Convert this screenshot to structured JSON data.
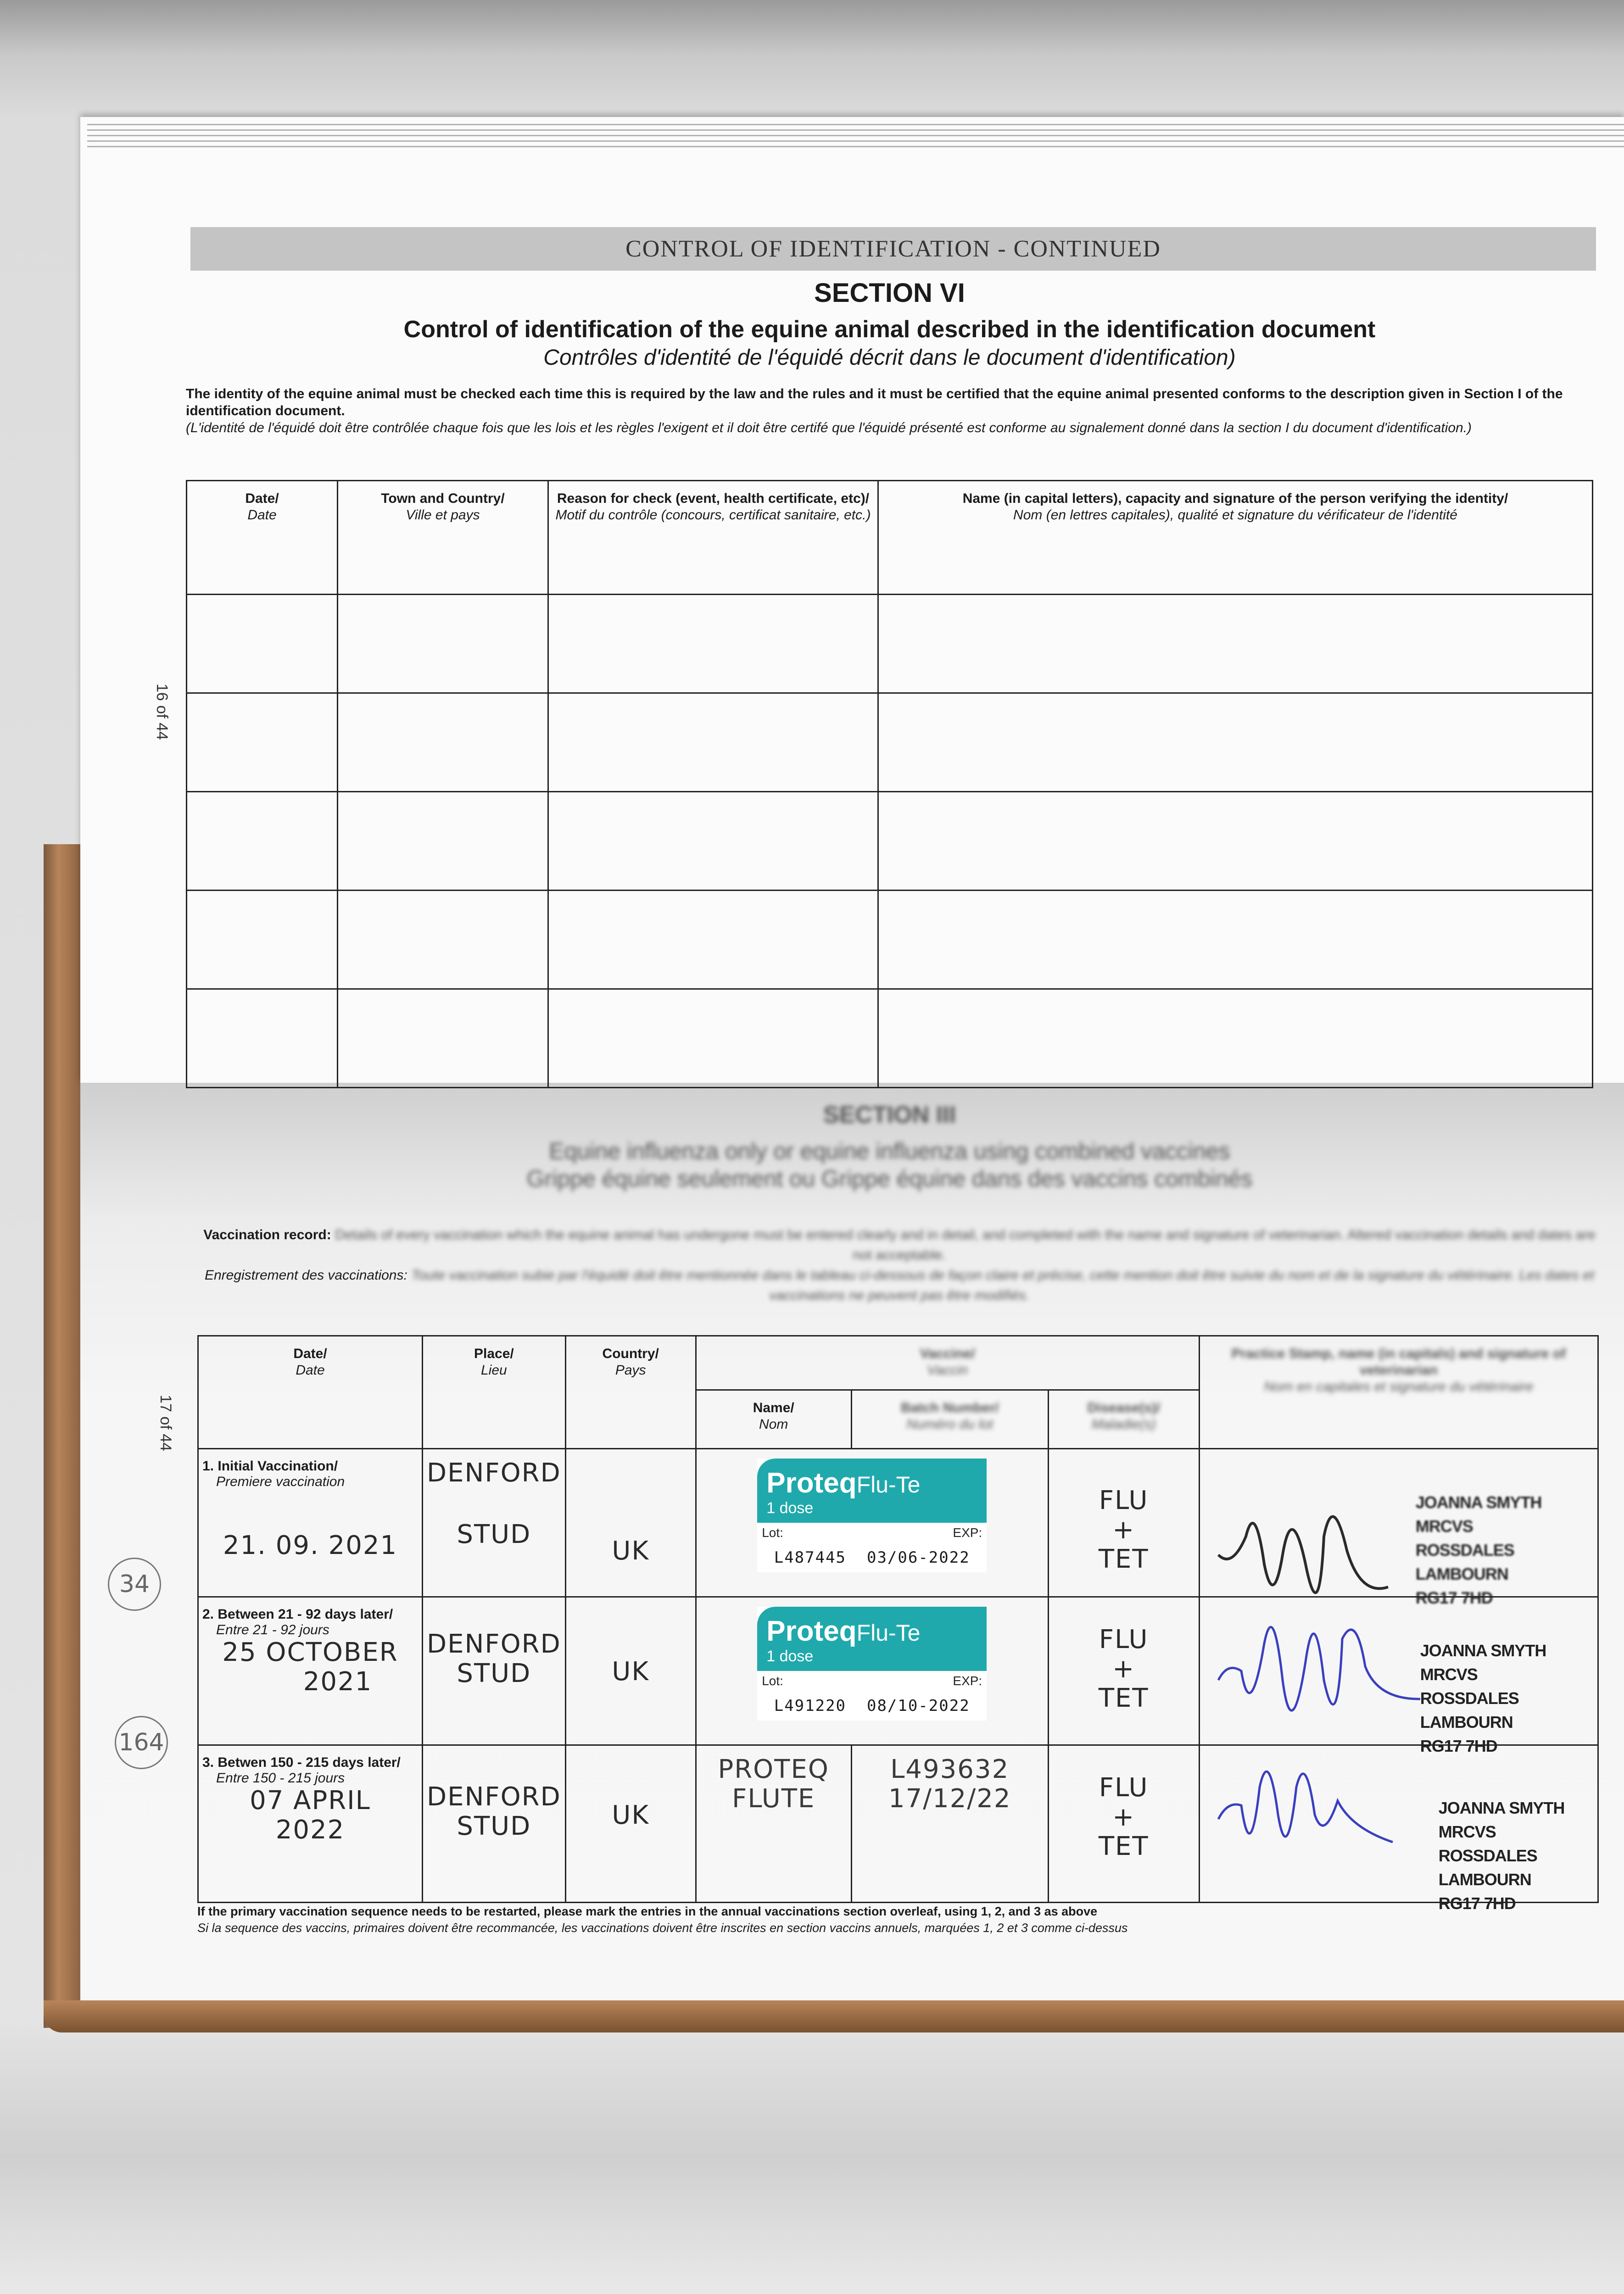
{
  "top_page": {
    "band_title": "CONTROL OF IDENTIFICATION - CONTINUED",
    "section": "SECTION VI",
    "title": "Control of identification of the equine animal described in the identification document",
    "subtitle": "Contrôles d'identité de l'équidé décrit dans le document d'identification)",
    "intro_en": "The identity of the equine animal must be checked each time this is required by the law and the rules and it must be certified that the equine animal presented conforms to the description given in Section I of the identification document.",
    "intro_fr": "(L'identité de l'équidé doit être contrôlée chaque fois que les lois et les règles l'exigent et il doit être certifé que l'équidé présenté est conforme au signalement donné dans la section I du document d'identification.)",
    "page_number": "16 of 44",
    "table": {
      "headers": [
        {
          "en": "Date/",
          "fr": "Date"
        },
        {
          "en": "Town and Country/",
          "fr": "Ville et pays"
        },
        {
          "en": "Reason for check (event, health certificate, etc)/",
          "fr": "Motif du contrôle (concours, certificat sanitaire, etc.)"
        },
        {
          "en": "Name (in capital letters), capacity and signature of the person verifying the identity/",
          "fr": "Nom (en lettres capitales), qualité et signature du vérificateur de l'identité"
        }
      ],
      "empty_rows": 5
    }
  },
  "bottom_page": {
    "section": "SECTION III",
    "subtitle_en": "Equine influenza only or equine influenza using combined vaccines",
    "subtitle_fr": "Grippe équine seulement ou Grippe équine dans des vaccins combinés",
    "record_en_label": "Vaccination record:",
    "record_en": "Details of every vaccination which the equine animal has undergone must be entered clearly and in detail, and completed with the name and signature of veterinarian. Altered vaccination details and dates are not acceptable.",
    "record_fr_label": "Enregistrement des vaccinations:",
    "record_fr": "Toute vaccination subie par l'équidé doit être mentionnée dans le tableau ci-dessous de façon claire et précise, cette mention doit être suivie du nom et de la signature du vétérinaire. Les dates et vaccinations ne peuvent pas être modifiés.",
    "page_number": "17 of 44",
    "table": {
      "headers": {
        "date": {
          "en": "Date/",
          "fr": "Date"
        },
        "place": {
          "en": "Place/",
          "fr": "Lieu"
        },
        "country": {
          "en": "Country/",
          "fr": "Pays"
        },
        "vaccine": {
          "en": "Vaccine/",
          "fr": "Vaccin"
        },
        "name": {
          "en": "Name/",
          "fr": "Nom"
        },
        "batch": {
          "en": "Batch Number/",
          "fr": "Numéro du lot"
        },
        "disease": {
          "en": "Disease(s)/",
          "fr": "Maladie(s)"
        },
        "practice": {
          "en": "Practice Stamp, name (in capitals) and signature of veterinarian",
          "fr": "Nom en capitales et signature du vétérinaire"
        }
      },
      "rows": [
        {
          "stage_en": "1. Initial Vaccination/",
          "stage_fr": "Premiere vaccination",
          "date": "21. 09. 2021",
          "place_1": "DENFORD",
          "place_2": "STUD",
          "country": "UK",
          "label": {
            "brand": "Proteq",
            "product": "Flu-Te",
            "dose": "1 dose",
            "lot_label": "Lot:",
            "exp_label": "EXP:",
            "lot": "L487445",
            "exp": "03/06-2022"
          },
          "disease_1": "FLU",
          "disease_2": "+",
          "disease_3": "TET",
          "stamp": [
            "JOANNA SMYTH MRCVS",
            "ROSSDALES LAMBOURN",
            "RG17 7HD"
          ],
          "ink": "#2b2b2b"
        },
        {
          "stage_en": "2. Between 21 - 92 days later/",
          "stage_fr": "Entre 21 - 92 jours",
          "date_1": "25 OCTOBER",
          "date_2": "2021",
          "place_1": "DENFORD",
          "place_2": "STUD",
          "country": "UK",
          "label": {
            "brand": "Proteq",
            "product": "Flu-Te",
            "dose": "1 dose",
            "lot_label": "Lot:",
            "exp_label": "EXP:",
            "lot": "L491220",
            "exp": "08/10-2022"
          },
          "disease_1": "FLU",
          "disease_2": "+",
          "disease_3": "TET",
          "stamp": [
            "JOANNA SMYTH MRCVS",
            "ROSSDALES LAMBOURN",
            "RG17 7HD"
          ],
          "ink": "#3a3fc0"
        },
        {
          "stage_en": "3. Betwen 150 - 215 days later/",
          "stage_fr": "Entre 150 - 215 jours",
          "date_1": "07 APRIL",
          "date_2": "2022",
          "place_1": "DENFORD",
          "place_2": "STUD",
          "country": "UK",
          "vaccine_1": "PROTEQ",
          "vaccine_2": "FLUTE",
          "batch_1": "L493632",
          "batch_2": "17/12/22",
          "disease_1": "FLU",
          "disease_2": "+",
          "disease_3": "TET",
          "stamp": [
            "JOANNA SMYTH MRCVS",
            "ROSSDALES LAMBOURN",
            "RG17 7HD"
          ],
          "ink": "#3a3fc0"
        }
      ]
    },
    "footnote_en": "If the primary vaccination sequence needs to be restarted, please mark the entries in the annual vaccinations section overleaf, using 1, 2, and 3 as above",
    "footnote_fr": "Si la sequence des vaccins, primaires doivent être recommancée, les vaccinations doivent être inscrites en section vaccins annuels, marquées 1, 2 et 3 comme ci-dessus",
    "margin_notes": [
      "34",
      "164"
    ]
  },
  "colors": {
    "label_teal": "#1fa9ac",
    "blue_ink": "#3a3fc0",
    "cover_brown": "#b8845a"
  }
}
